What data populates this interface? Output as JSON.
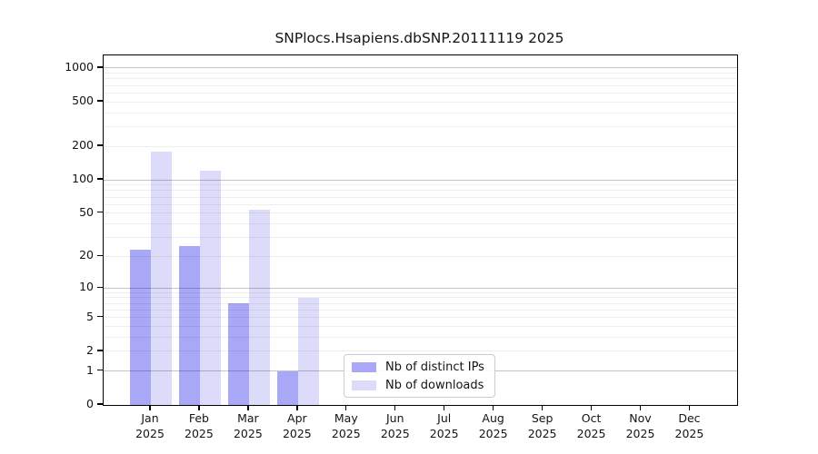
{
  "title": "SNPlocs.Hsapiens.dbSNP.20111119 2025",
  "chart_data": {
    "type": "bar",
    "title": "SNPlocs.Hsapiens.dbSNP.20111119 2025",
    "y_scale": "log10(1+y)",
    "ylim": [
      0,
      1275
    ],
    "y_ticks": [
      0,
      1,
      2,
      5,
      10,
      20,
      50,
      100,
      200,
      500,
      1000
    ],
    "grid": "horizontal log minor+major, drawn over bars",
    "legend_position": "bottom center",
    "categories": [
      {
        "month": "Jan",
        "year": "2025"
      },
      {
        "month": "Feb",
        "year": "2025"
      },
      {
        "month": "Mar",
        "year": "2025"
      },
      {
        "month": "Apr",
        "year": "2025"
      },
      {
        "month": "May",
        "year": "2025"
      },
      {
        "month": "Jun",
        "year": "2025"
      },
      {
        "month": "Jul",
        "year": "2025"
      },
      {
        "month": "Aug",
        "year": "2025"
      },
      {
        "month": "Sep",
        "year": "2025"
      },
      {
        "month": "Oct",
        "year": "2025"
      },
      {
        "month": "Nov",
        "year": "2025"
      },
      {
        "month": "Dec",
        "year": "2025"
      }
    ],
    "series": [
      {
        "name": "Nb of distinct IPs",
        "color": "#a8a8f6",
        "values": [
          23,
          25,
          7,
          1,
          0,
          0,
          0,
          0,
          0,
          0,
          0,
          0
        ]
      },
      {
        "name": "Nb of downloads",
        "color": "#dcdcfa",
        "values": [
          180,
          120,
          54,
          8,
          0,
          0,
          0,
          0,
          0,
          0,
          0,
          0
        ]
      }
    ]
  }
}
